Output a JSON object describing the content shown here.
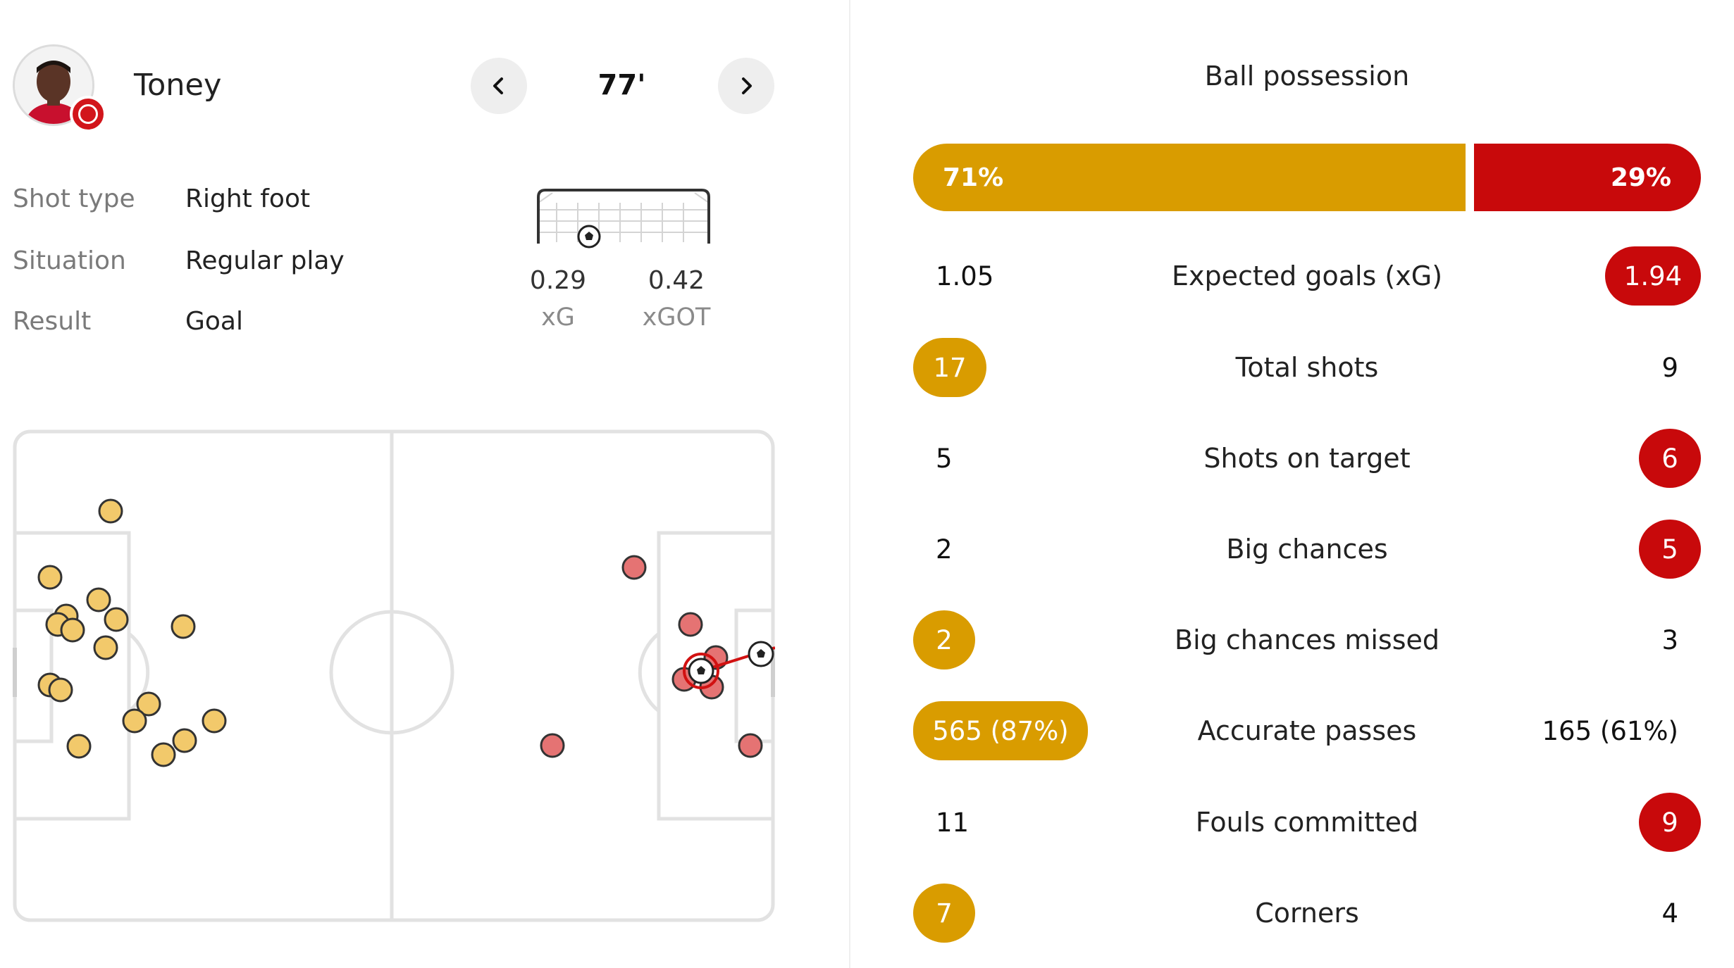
{
  "shot": {
    "player": "Toney",
    "minute": "77'",
    "details": [
      {
        "label": "Shot type",
        "value": "Right foot"
      },
      {
        "label": "Situation",
        "value": "Regular play"
      },
      {
        "label": "Result",
        "value": "Goal"
      }
    ],
    "xg": {
      "value": "0.29",
      "label": "xG"
    },
    "xgot": {
      "value": "0.42",
      "label": "xGOT"
    }
  },
  "colors": {
    "home": "#d99c00",
    "away": "#c8090b",
    "home_dot": "#f2c96b",
    "away_dot": "#e57373"
  },
  "icons": {
    "prev": "chevron-left-icon",
    "next": "chevron-right-icon",
    "ball": "football-icon"
  },
  "possession": {
    "title": "Ball possession",
    "home": "71%",
    "away": "29%",
    "home_fraction": 0.71,
    "away_fraction": 0.29
  },
  "stats": [
    {
      "label": "Expected goals (xG)",
      "home": "1.05",
      "away": "1.94",
      "highlight": "away"
    },
    {
      "label": "Total shots",
      "home": "17",
      "away": "9",
      "highlight": "home"
    },
    {
      "label": "Shots on target",
      "home": "5",
      "away": "6",
      "highlight": "away"
    },
    {
      "label": "Big chances",
      "home": "2",
      "away": "5",
      "highlight": "away"
    },
    {
      "label": "Big chances missed",
      "home": "2",
      "away": "3",
      "highlight": "home"
    },
    {
      "label": "Accurate passes",
      "home": "565 (87%)",
      "away": "165 (61%)",
      "highlight": "home"
    },
    {
      "label": "Fouls committed",
      "home": "11",
      "away": "9",
      "highlight": "away"
    },
    {
      "label": "Corners",
      "home": "7",
      "away": "4",
      "highlight": "home"
    }
  ]
}
